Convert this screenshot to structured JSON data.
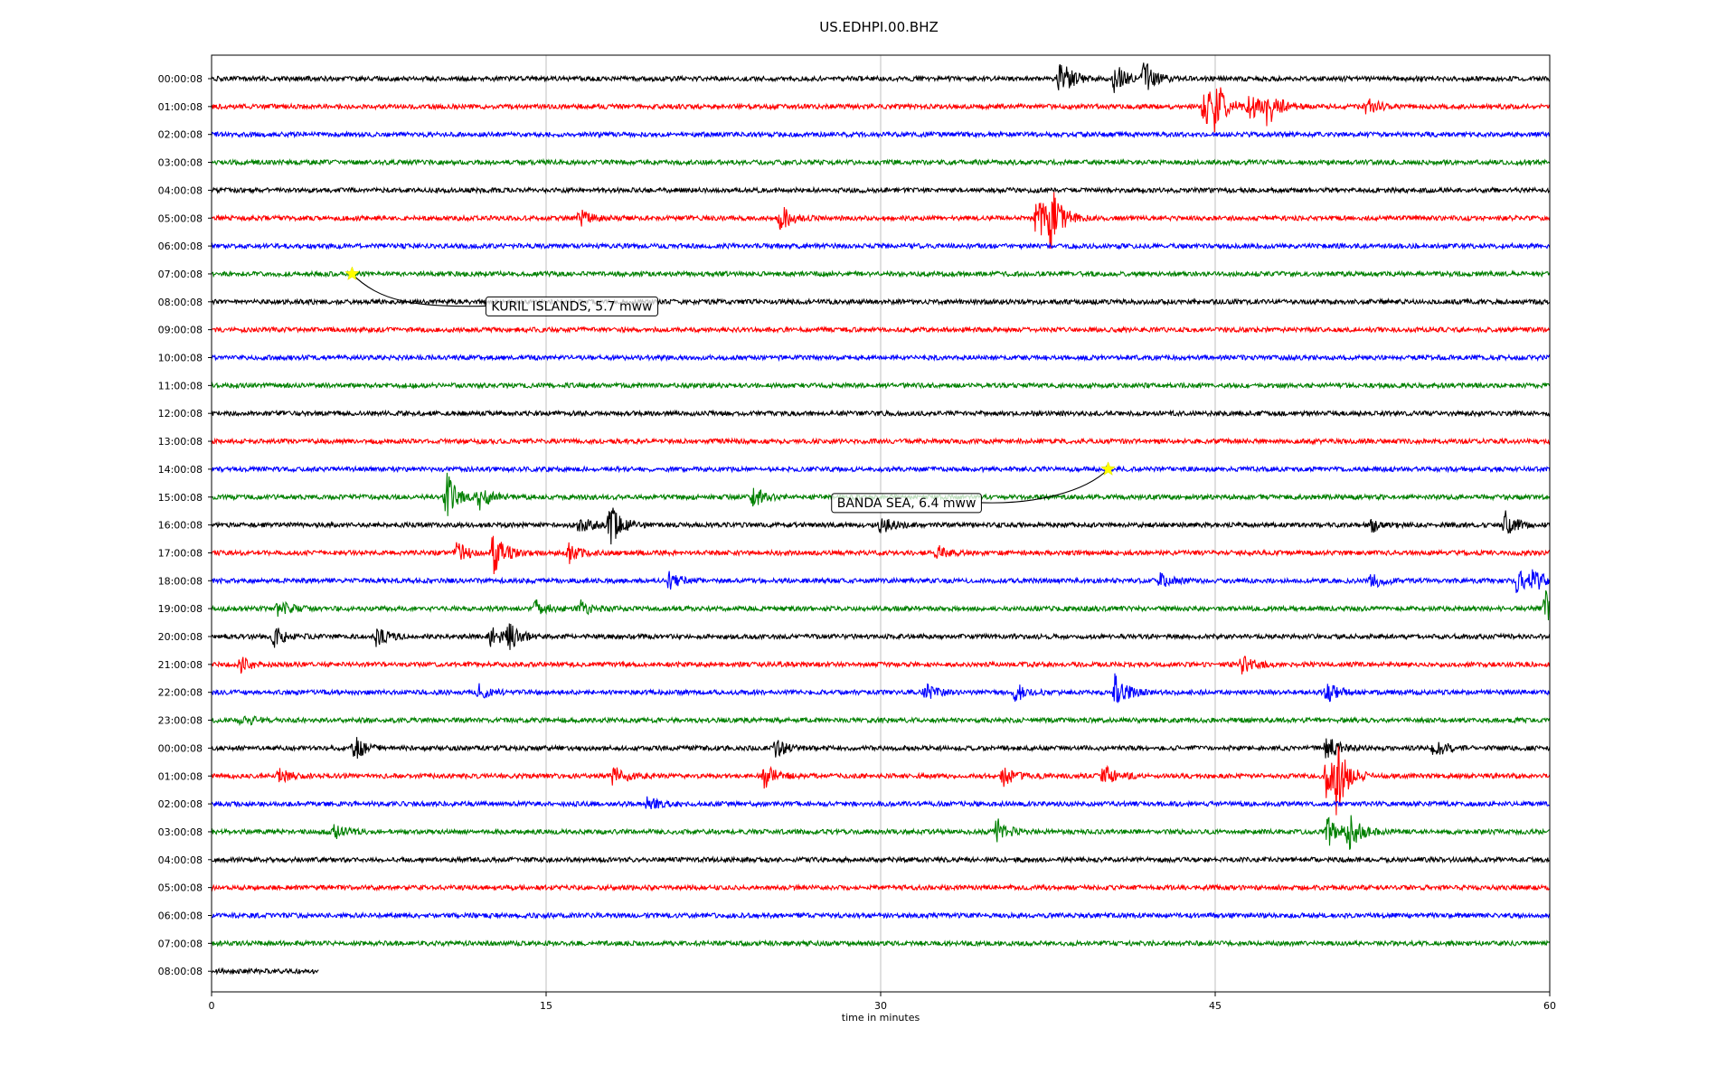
{
  "chart_data": {
    "type": "line",
    "title": "US.EDHPI.00.BHZ",
    "xlabel": "time in minutes",
    "ylabel": "",
    "xlim": [
      0,
      60
    ],
    "xticks": [
      0,
      15,
      30,
      45,
      60
    ],
    "grid": "vertical",
    "colors": [
      "#000000",
      "#ff0000",
      "#0000ff",
      "#008000"
    ],
    "last_row_end_minute": 4.8,
    "rows": [
      "00:00:08",
      "01:00:08",
      "02:00:08",
      "03:00:08",
      "04:00:08",
      "05:00:08",
      "06:00:08",
      "07:00:08",
      "08:00:08",
      "09:00:08",
      "10:00:08",
      "11:00:08",
      "12:00:08",
      "13:00:08",
      "14:00:08",
      "15:00:08",
      "16:00:08",
      "17:00:08",
      "18:00:08",
      "19:00:08",
      "20:00:08",
      "21:00:08",
      "22:00:08",
      "23:00:08",
      "00:00:08",
      "01:00:08",
      "02:00:08",
      "03:00:08",
      "04:00:08",
      "05:00:08",
      "06:00:08",
      "07:00:08",
      "08:00:08"
    ],
    "bursts": [
      {
        "row": 0,
        "t": 38,
        "amp": 1.5
      },
      {
        "row": 0,
        "t": 40.5,
        "amp": 1.1
      },
      {
        "row": 0,
        "t": 41.8,
        "amp": 1.3
      },
      {
        "row": 1,
        "t": 44.5,
        "amp": 1.6
      },
      {
        "row": 1,
        "t": 45,
        "amp": 1.5
      },
      {
        "row": 1,
        "t": 46.5,
        "amp": 1.0
      },
      {
        "row": 1,
        "t": 47.3,
        "amp": 1.4
      },
      {
        "row": 1,
        "t": 51.8,
        "amp": 0.6
      },
      {
        "row": 5,
        "t": 16.5,
        "amp": 0.6
      },
      {
        "row": 5,
        "t": 25.5,
        "amp": 0.9
      },
      {
        "row": 5,
        "t": 37,
        "amp": 1.8
      },
      {
        "row": 5,
        "t": 37.6,
        "amp": 2.2
      },
      {
        "row": 15,
        "t": 10.5,
        "amp": 1.8
      },
      {
        "row": 15,
        "t": 12,
        "amp": 0.8
      },
      {
        "row": 15,
        "t": 24.3,
        "amp": 0.8
      },
      {
        "row": 16,
        "t": 16.5,
        "amp": 0.7
      },
      {
        "row": 16,
        "t": 17.8,
        "amp": 1.6
      },
      {
        "row": 16,
        "t": 30,
        "amp": 0.7
      },
      {
        "row": 16,
        "t": 52,
        "amp": 0.5
      },
      {
        "row": 16,
        "t": 58,
        "amp": 0.9
      },
      {
        "row": 17,
        "t": 11,
        "amp": 0.7
      },
      {
        "row": 17,
        "t": 12.6,
        "amp": 1.7
      },
      {
        "row": 17,
        "t": 16,
        "amp": 0.7
      },
      {
        "row": 17,
        "t": 32.5,
        "amp": 0.5
      },
      {
        "row": 18,
        "t": 20.5,
        "amp": 0.6
      },
      {
        "row": 18,
        "t": 42.5,
        "amp": 0.5
      },
      {
        "row": 18,
        "t": 52,
        "amp": 0.5
      },
      {
        "row": 18,
        "t": 58.5,
        "amp": 0.9
      },
      {
        "row": 18,
        "t": 59.2,
        "amp": 0.8
      },
      {
        "row": 19,
        "t": 3,
        "amp": 0.6
      },
      {
        "row": 19,
        "t": 14.5,
        "amp": 0.6
      },
      {
        "row": 19,
        "t": 16.5,
        "amp": 0.6
      },
      {
        "row": 19,
        "t": 59.8,
        "amp": 1.3
      },
      {
        "row": 20,
        "t": 2.8,
        "amp": 0.7
      },
      {
        "row": 20,
        "t": 7.3,
        "amp": 0.8
      },
      {
        "row": 20,
        "t": 12.5,
        "amp": 0.8
      },
      {
        "row": 20,
        "t": 13.3,
        "amp": 0.8
      },
      {
        "row": 21,
        "t": 1.3,
        "amp": 0.5
      },
      {
        "row": 21,
        "t": 46.2,
        "amp": 0.6
      },
      {
        "row": 22,
        "t": 12,
        "amp": 0.5
      },
      {
        "row": 22,
        "t": 32,
        "amp": 0.6
      },
      {
        "row": 22,
        "t": 36,
        "amp": 0.7
      },
      {
        "row": 22,
        "t": 40.5,
        "amp": 1.2
      },
      {
        "row": 22,
        "t": 50,
        "amp": 0.8
      },
      {
        "row": 23,
        "t": 1.3,
        "amp": 0.5
      },
      {
        "row": 24,
        "t": 6.4,
        "amp": 0.8
      },
      {
        "row": 24,
        "t": 25.3,
        "amp": 0.6
      },
      {
        "row": 24,
        "t": 50,
        "amp": 0.9
      },
      {
        "row": 24,
        "t": 54.8,
        "amp": 0.7
      },
      {
        "row": 25,
        "t": 3,
        "amp": 0.5
      },
      {
        "row": 25,
        "t": 18,
        "amp": 0.8
      },
      {
        "row": 25,
        "t": 24.8,
        "amp": 0.9
      },
      {
        "row": 25,
        "t": 35.5,
        "amp": 0.7
      },
      {
        "row": 25,
        "t": 40,
        "amp": 0.8
      },
      {
        "row": 25,
        "t": 50,
        "amp": 1.8
      },
      {
        "row": 25,
        "t": 50.4,
        "amp": 2.0
      },
      {
        "row": 26,
        "t": 19.5,
        "amp": 0.5
      },
      {
        "row": 27,
        "t": 5.5,
        "amp": 0.5
      },
      {
        "row": 27,
        "t": 35.2,
        "amp": 0.9
      },
      {
        "row": 27,
        "t": 50,
        "amp": 1.5
      },
      {
        "row": 27,
        "t": 51,
        "amp": 1.3
      }
    ],
    "events": [
      {
        "label": "KURIL ISLANDS, 5.7 mww",
        "row": 7,
        "minute": 6.3,
        "label_minute": 12.3,
        "label_row": 8.15
      },
      {
        "label": "BANDA SEA, 6.4 mww",
        "row": 14,
        "minute": 40.2,
        "label_minute": 27.8,
        "label_row": 15.2
      }
    ]
  }
}
